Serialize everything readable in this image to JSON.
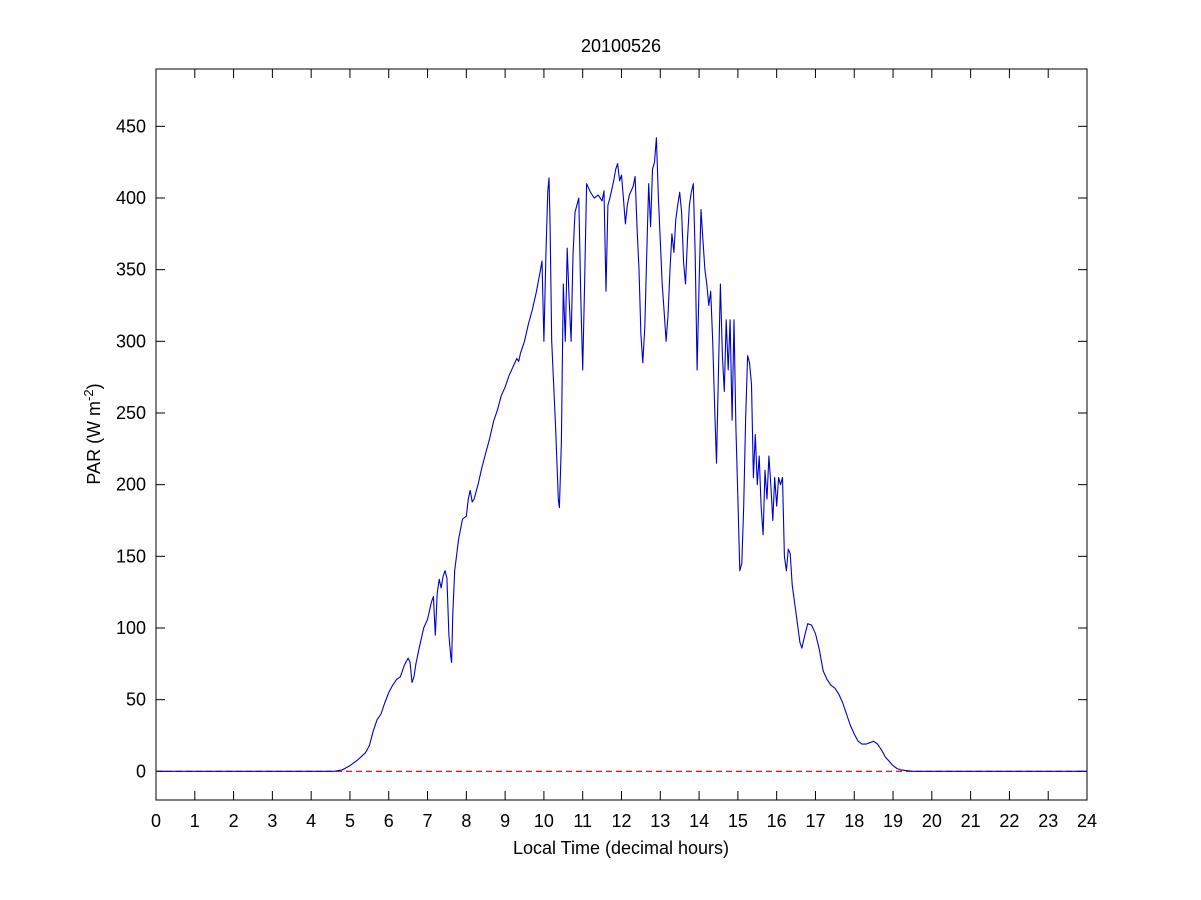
{
  "chart_data": {
    "type": "line",
    "title": "20100526",
    "xlabel": "Local Time (decimal hours)",
    "ylabel": {
      "prefix": "PAR (W m",
      "superscript": "-2",
      "suffix": ")"
    },
    "xlim": [
      0,
      24
    ],
    "ylim": [
      -20,
      490
    ],
    "x_ticks": [
      0,
      1,
      2,
      3,
      4,
      5,
      6,
      7,
      8,
      9,
      10,
      11,
      12,
      13,
      14,
      15,
      16,
      17,
      18,
      19,
      20,
      21,
      22,
      23,
      24
    ],
    "y_ticks": [
      0,
      50,
      100,
      150,
      200,
      250,
      300,
      350,
      400,
      450
    ],
    "grid": false,
    "series": [
      {
        "color": "#0000cc",
        "style": "solid",
        "points": [
          [
            0,
            0
          ],
          [
            4.6,
            0
          ],
          [
            4.8,
            1
          ],
          [
            5.0,
            4
          ],
          [
            5.2,
            8
          ],
          [
            5.4,
            13
          ],
          [
            5.5,
            18
          ],
          [
            5.6,
            28
          ],
          [
            5.7,
            36
          ],
          [
            5.8,
            40
          ],
          [
            5.9,
            48
          ],
          [
            6.0,
            55
          ],
          [
            6.1,
            60
          ],
          [
            6.2,
            64
          ],
          [
            6.3,
            66
          ],
          [
            6.4,
            74
          ],
          [
            6.5,
            79
          ],
          [
            6.55,
            76
          ],
          [
            6.6,
            62
          ],
          [
            6.65,
            66
          ],
          [
            6.7,
            75
          ],
          [
            6.8,
            88
          ],
          [
            6.9,
            100
          ],
          [
            7.0,
            106
          ],
          [
            7.05,
            112
          ],
          [
            7.1,
            118
          ],
          [
            7.15,
            122
          ],
          [
            7.2,
            95
          ],
          [
            7.25,
            124
          ],
          [
            7.3,
            134
          ],
          [
            7.35,
            128
          ],
          [
            7.4,
            136
          ],
          [
            7.45,
            140
          ],
          [
            7.5,
            135
          ],
          [
            7.55,
            95
          ],
          [
            7.6,
            80
          ],
          [
            7.62,
            76
          ],
          [
            7.65,
            110
          ],
          [
            7.7,
            140
          ],
          [
            7.8,
            162
          ],
          [
            7.9,
            176
          ],
          [
            8.0,
            178
          ],
          [
            8.05,
            190
          ],
          [
            8.1,
            196
          ],
          [
            8.15,
            188
          ],
          [
            8.2,
            190
          ],
          [
            8.3,
            200
          ],
          [
            8.4,
            212
          ],
          [
            8.5,
            222
          ],
          [
            8.6,
            232
          ],
          [
            8.7,
            244
          ],
          [
            8.8,
            252
          ],
          [
            8.9,
            262
          ],
          [
            9.0,
            268
          ],
          [
            9.1,
            276
          ],
          [
            9.2,
            282
          ],
          [
            9.3,
            288
          ],
          [
            9.35,
            286
          ],
          [
            9.4,
            292
          ],
          [
            9.5,
            300
          ],
          [
            9.6,
            312
          ],
          [
            9.7,
            322
          ],
          [
            9.8,
            334
          ],
          [
            9.9,
            348
          ],
          [
            9.95,
            356
          ],
          [
            10.0,
            300
          ],
          [
            10.05,
            360
          ],
          [
            10.1,
            405
          ],
          [
            10.13,
            414
          ],
          [
            10.16,
            380
          ],
          [
            10.2,
            300
          ],
          [
            10.3,
            240
          ],
          [
            10.37,
            190
          ],
          [
            10.4,
            184
          ],
          [
            10.45,
            230
          ],
          [
            10.5,
            340
          ],
          [
            10.55,
            300
          ],
          [
            10.6,
            365
          ],
          [
            10.65,
            330
          ],
          [
            10.7,
            300
          ],
          [
            10.75,
            360
          ],
          [
            10.8,
            390
          ],
          [
            10.85,
            395
          ],
          [
            10.9,
            400
          ],
          [
            10.95,
            330
          ],
          [
            11.0,
            280
          ],
          [
            11.05,
            340
          ],
          [
            11.1,
            410
          ],
          [
            11.2,
            404
          ],
          [
            11.3,
            400
          ],
          [
            11.4,
            402
          ],
          [
            11.5,
            398
          ],
          [
            11.55,
            405
          ],
          [
            11.6,
            335
          ],
          [
            11.65,
            395
          ],
          [
            11.7,
            400
          ],
          [
            11.8,
            412
          ],
          [
            11.85,
            420
          ],
          [
            11.9,
            424
          ],
          [
            11.95,
            412
          ],
          [
            12.0,
            416
          ],
          [
            12.05,
            400
          ],
          [
            12.1,
            382
          ],
          [
            12.15,
            395
          ],
          [
            12.2,
            402
          ],
          [
            12.3,
            408
          ],
          [
            12.35,
            415
          ],
          [
            12.4,
            380
          ],
          [
            12.45,
            350
          ],
          [
            12.5,
            305
          ],
          [
            12.55,
            285
          ],
          [
            12.6,
            310
          ],
          [
            12.65,
            360
          ],
          [
            12.7,
            410
          ],
          [
            12.75,
            380
          ],
          [
            12.8,
            420
          ],
          [
            12.85,
            425
          ],
          [
            12.9,
            442
          ],
          [
            12.95,
            400
          ],
          [
            13.0,
            370
          ],
          [
            13.05,
            340
          ],
          [
            13.1,
            320
          ],
          [
            13.15,
            300
          ],
          [
            13.2,
            318
          ],
          [
            13.25,
            350
          ],
          [
            13.3,
            375
          ],
          [
            13.35,
            362
          ],
          [
            13.4,
            385
          ],
          [
            13.45,
            395
          ],
          [
            13.5,
            404
          ],
          [
            13.55,
            390
          ],
          [
            13.6,
            355
          ],
          [
            13.65,
            340
          ],
          [
            13.7,
            370
          ],
          [
            13.75,
            395
          ],
          [
            13.8,
            404
          ],
          [
            13.85,
            410
          ],
          [
            13.9,
            360
          ],
          [
            13.95,
            280
          ],
          [
            14.0,
            340
          ],
          [
            14.05,
            392
          ],
          [
            14.1,
            370
          ],
          [
            14.15,
            350
          ],
          [
            14.2,
            340
          ],
          [
            14.25,
            325
          ],
          [
            14.3,
            335
          ],
          [
            14.35,
            300
          ],
          [
            14.4,
            255
          ],
          [
            14.45,
            215
          ],
          [
            14.5,
            280
          ],
          [
            14.55,
            340
          ],
          [
            14.6,
            290
          ],
          [
            14.65,
            265
          ],
          [
            14.7,
            315
          ],
          [
            14.75,
            280
          ],
          [
            14.8,
            315
          ],
          [
            14.85,
            245
          ],
          [
            14.9,
            315
          ],
          [
            14.95,
            240
          ],
          [
            15.0,
            190
          ],
          [
            15.05,
            140
          ],
          [
            15.1,
            145
          ],
          [
            15.15,
            185
          ],
          [
            15.2,
            245
          ],
          [
            15.25,
            290
          ],
          [
            15.3,
            285
          ],
          [
            15.35,
            270
          ],
          [
            15.4,
            205
          ],
          [
            15.45,
            235
          ],
          [
            15.5,
            200
          ],
          [
            15.55,
            220
          ],
          [
            15.6,
            185
          ],
          [
            15.65,
            165
          ],
          [
            15.7,
            210
          ],
          [
            15.75,
            190
          ],
          [
            15.8,
            220
          ],
          [
            15.85,
            200
          ],
          [
            15.9,
            175
          ],
          [
            15.95,
            205
          ],
          [
            16.0,
            185
          ],
          [
            16.05,
            205
          ],
          [
            16.1,
            200
          ],
          [
            16.15,
            205
          ],
          [
            16.2,
            150
          ],
          [
            16.25,
            140
          ],
          [
            16.3,
            155
          ],
          [
            16.35,
            152
          ],
          [
            16.4,
            130
          ],
          [
            16.5,
            110
          ],
          [
            16.6,
            90
          ],
          [
            16.65,
            86
          ],
          [
            16.7,
            92
          ],
          [
            16.8,
            103
          ],
          [
            16.9,
            102
          ],
          [
            17.0,
            96
          ],
          [
            17.1,
            85
          ],
          [
            17.2,
            70
          ],
          [
            17.3,
            64
          ],
          [
            17.4,
            60
          ],
          [
            17.5,
            58
          ],
          [
            17.6,
            54
          ],
          [
            17.7,
            48
          ],
          [
            17.8,
            40
          ],
          [
            17.9,
            32
          ],
          [
            18.0,
            26
          ],
          [
            18.1,
            21
          ],
          [
            18.2,
            19
          ],
          [
            18.3,
            19
          ],
          [
            18.4,
            20
          ],
          [
            18.5,
            21
          ],
          [
            18.6,
            19
          ],
          [
            18.7,
            15
          ],
          [
            18.8,
            10
          ],
          [
            18.9,
            7
          ],
          [
            19.0,
            4
          ],
          [
            19.1,
            2
          ],
          [
            19.2,
            1
          ],
          [
            19.5,
            0
          ],
          [
            24,
            0
          ]
        ]
      },
      {
        "color": "#cc0000",
        "style": "dashed",
        "points": [
          [
            0,
            0
          ],
          [
            24,
            0
          ]
        ]
      }
    ]
  }
}
